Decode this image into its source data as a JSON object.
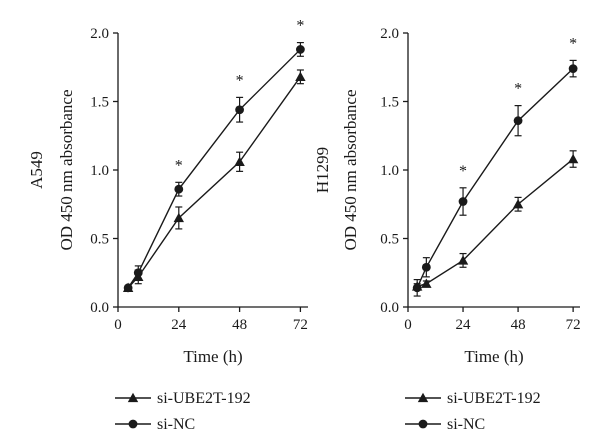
{
  "chart_data": [
    {
      "type": "line",
      "side_label": "A549",
      "xlabel": "Time (h)",
      "ylabel": "OD 450 nm absorbance",
      "x_ticks": [
        0,
        24,
        48,
        72
      ],
      "y_ticks": [
        0.0,
        0.5,
        1.0,
        1.5,
        2.0
      ],
      "y_tick_labels": [
        "0.0",
        "0.5",
        "1.0",
        "1.5",
        "2.0"
      ],
      "xlim": [
        0,
        75
      ],
      "ylim": [
        0,
        2.0
      ],
      "x": [
        4,
        8,
        24,
        48,
        72
      ],
      "series": [
        {
          "name": "si-UBE2T-192",
          "marker": "triangle",
          "values": [
            0.14,
            0.22,
            0.65,
            1.06,
            1.68
          ],
          "errors": [
            0.01,
            0.05,
            0.08,
            0.07,
            0.05
          ]
        },
        {
          "name": "si-NC",
          "marker": "circle",
          "values": [
            0.14,
            0.25,
            0.86,
            1.44,
            1.88
          ],
          "errors": [
            0.01,
            0.05,
            0.05,
            0.09,
            0.05
          ]
        }
      ],
      "significance": [
        {
          "x": 24,
          "label": "*"
        },
        {
          "x": 48,
          "label": "*"
        },
        {
          "x": 72,
          "label": "*"
        }
      ],
      "legend": "bottom"
    },
    {
      "type": "line",
      "side_label": "H1299",
      "xlabel": "Time (h)",
      "ylabel": "OD 450 nm absorbance",
      "x_ticks": [
        0,
        24,
        48,
        72
      ],
      "y_ticks": [
        0.0,
        0.5,
        1.0,
        1.5,
        2.0
      ],
      "y_tick_labels": [
        "0.0",
        "0.5",
        "1.0",
        "1.5",
        "2.0"
      ],
      "xlim": [
        0,
        75
      ],
      "ylim": [
        0,
        2.0
      ],
      "x": [
        4,
        8,
        24,
        48,
        72
      ],
      "series": [
        {
          "name": "si-UBE2T-192",
          "marker": "triangle",
          "values": [
            0.15,
            0.17,
            0.34,
            0.75,
            1.08
          ],
          "errors": [
            0.02,
            0.02,
            0.05,
            0.05,
            0.06
          ]
        },
        {
          "name": "si-NC",
          "marker": "circle",
          "values": [
            0.14,
            0.29,
            0.77,
            1.36,
            1.74
          ],
          "errors": [
            0.06,
            0.07,
            0.1,
            0.11,
            0.06
          ]
        }
      ],
      "significance": [
        {
          "x": 24,
          "label": "*"
        },
        {
          "x": 48,
          "label": "*"
        },
        {
          "x": 72,
          "label": "*"
        }
      ],
      "legend": "bottom"
    }
  ]
}
